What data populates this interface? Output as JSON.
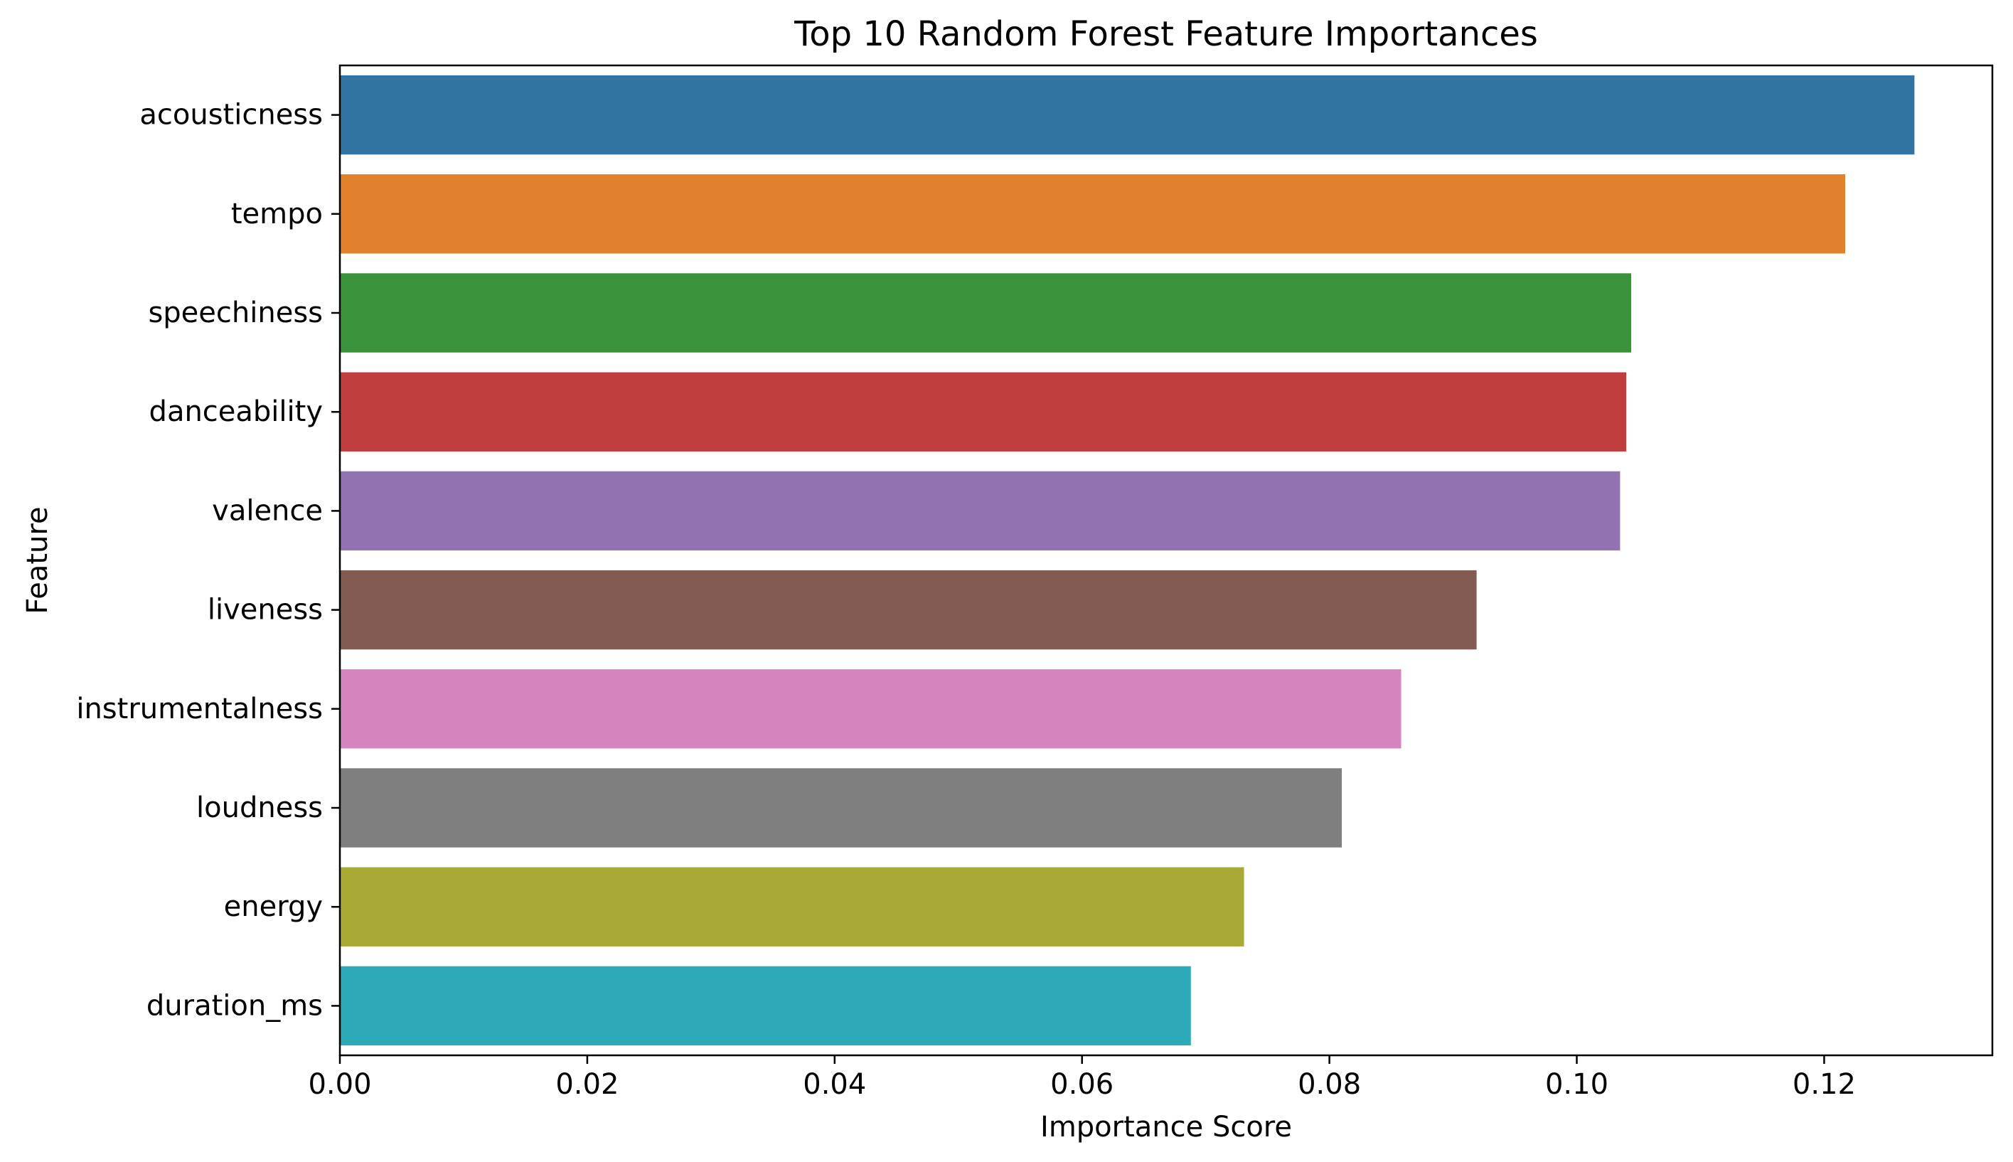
{
  "chart_data": {
    "type": "bar",
    "orientation": "horizontal",
    "title": "Top 10 Random Forest Feature Importances",
    "xlabel": "Importance Score",
    "ylabel": "Feature",
    "xlim": [
      0,
      0.1336
    ],
    "xticks": [
      "0.00",
      "0.02",
      "0.04",
      "0.06",
      "0.08",
      "0.10",
      "0.12"
    ],
    "grid": false,
    "legend": "none",
    "categories": [
      "acousticness",
      "tempo",
      "speechiness",
      "danceability",
      "valence",
      "liveness",
      "instrumentalness",
      "loudness",
      "energy",
      "duration_ms"
    ],
    "values": [
      0.1273,
      0.1217,
      0.1044,
      0.104,
      0.1035,
      0.0919,
      0.0858,
      0.081,
      0.0731,
      0.0688
    ],
    "colors": [
      "#3274a1",
      "#e1812c",
      "#3a923a",
      "#c03d3e",
      "#9372b2",
      "#845b53",
      "#d684bd",
      "#7f7f7f",
      "#a9aa35",
      "#2ea9b8"
    ]
  }
}
